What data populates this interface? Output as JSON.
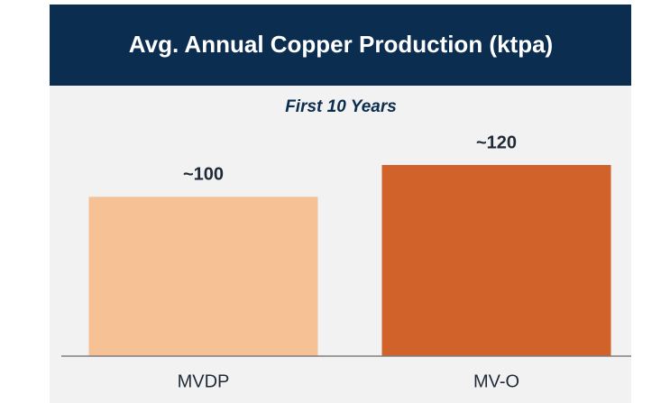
{
  "chart_data": {
    "type": "bar",
    "title": "Avg. Annual Copper Production (ktpa)",
    "subtitle": "First 10 Years",
    "categories": [
      "MVDP",
      "MV-O"
    ],
    "values": [
      100,
      120
    ],
    "value_labels": [
      "~100",
      "~120"
    ],
    "colors": [
      "#f5c195",
      "#d0622a"
    ]
  }
}
